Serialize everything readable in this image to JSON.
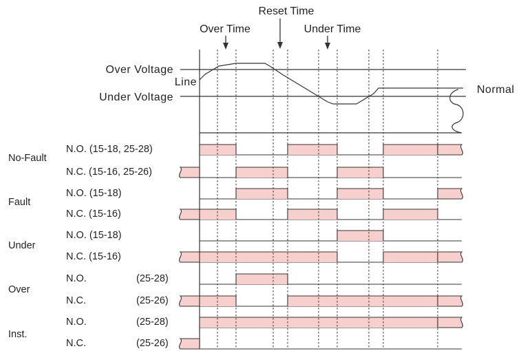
{
  "annotations": {
    "reset_time": "Reset Time",
    "over_time": "Over Time",
    "under_time": "Under Time"
  },
  "voltage": {
    "over_voltage": "Over Voltage",
    "under_voltage": "Under Voltage",
    "line": "Line",
    "normal": "Normal"
  },
  "groups": [
    {
      "label": "No-Fault",
      "rows": [
        {
          "label": "N.O. (15-18, 25-28)",
          "label_terms": ""
        },
        {
          "label": "N.C. (15-16, 25-26)",
          "label_terms": ""
        }
      ]
    },
    {
      "label": "Fault",
      "rows": [
        {
          "label": "N.O. (15-18)",
          "label_terms": ""
        },
        {
          "label": "N.C. (15-16)",
          "label_terms": ""
        }
      ]
    },
    {
      "label": "Under",
      "rows": [
        {
          "label": "N.O. (15-18)",
          "label_terms": ""
        },
        {
          "label": "N.C. (15-16)",
          "label_terms": ""
        }
      ]
    },
    {
      "label": "Over",
      "rows": [
        {
          "label": "N.O.",
          "label_terms": "(25-28)"
        },
        {
          "label": "N.C.",
          "label_terms": "(25-26)"
        }
      ]
    },
    {
      "label": "Inst.",
      "rows": [
        {
          "label": "N.O.",
          "label_terms": "(25-28)"
        },
        {
          "label": "N.C.",
          "label_terms": "(25-26)"
        }
      ]
    }
  ],
  "colors": {
    "pulse_fill": "#f7cfcc",
    "line": "#333333"
  }
}
